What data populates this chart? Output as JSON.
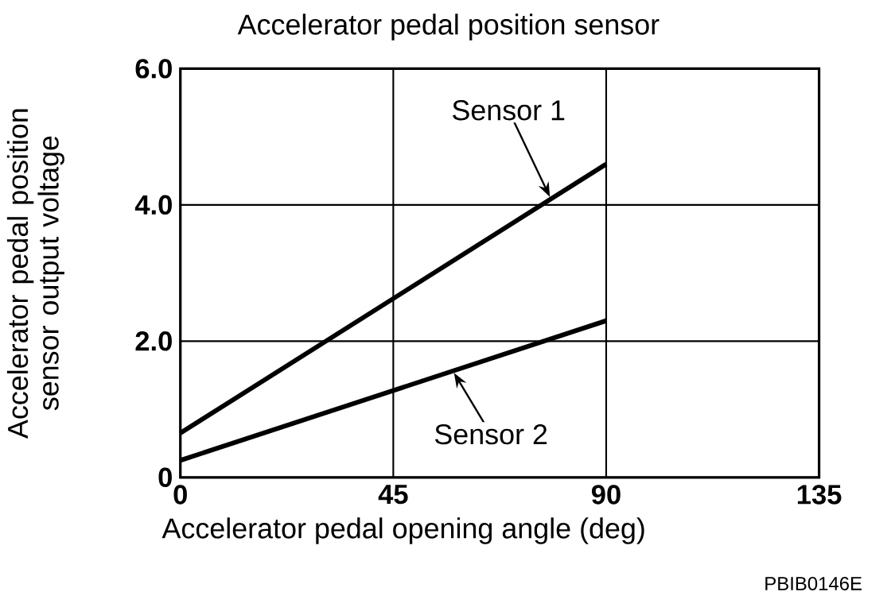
{
  "chart_data": {
    "type": "line",
    "title": "Accelerator pedal position sensor",
    "xlabel": "Accelerator pedal opening angle (deg)",
    "ylabel": "Accelerator pedal position sensor output voltage",
    "x": [
      0,
      90
    ],
    "series": [
      {
        "name": "Sensor 1",
        "color": "#000000",
        "values": [
          0.65,
          4.6
        ]
      },
      {
        "name": "Sensor 2",
        "color": "#000000",
        "values": [
          0.25,
          2.3
        ]
      }
    ],
    "xlim": [
      0,
      135
    ],
    "ylim": [
      0,
      6
    ],
    "xticks": [
      0,
      45,
      90,
      135
    ],
    "yticks": [
      0,
      {
        "value": 2,
        "label": "2.0"
      },
      {
        "value": 4,
        "label": "4.0"
      },
      {
        "value": 6,
        "label": "6.0"
      }
    ],
    "grid": true,
    "legend": false,
    "marker": "none",
    "line_style": "solid",
    "annotations": [
      "PBIB0146E"
    ]
  }
}
